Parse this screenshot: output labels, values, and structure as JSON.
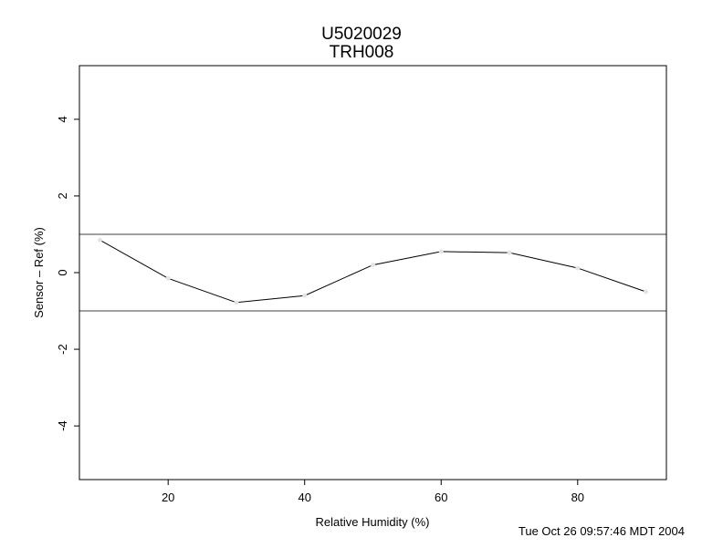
{
  "header": {
    "title": "U5020029",
    "subtitle": "TRH008"
  },
  "footer": {
    "timestamp": "Tue Oct 26 09:57:46 MDT 2004"
  },
  "chart_data": {
    "type": "line",
    "title": "U5020029",
    "subtitle": "TRH008",
    "xlabel": "Relative Humidity (%)",
    "ylabel": "Sensor – Ref (%)",
    "xlim": [
      7,
      93
    ],
    "ylim": [
      -5.4,
      5.4
    ],
    "xticks": [
      20,
      40,
      60,
      80
    ],
    "yticks": [
      -4,
      -2,
      0,
      2,
      4
    ],
    "grid": false,
    "reference_lines": [
      1,
      -1
    ],
    "series": [
      {
        "x": [
          10,
          20,
          30,
          40,
          50,
          60,
          70,
          80,
          90
        ],
        "values": [
          0.85,
          -0.15,
          -0.78,
          -0.6,
          0.2,
          0.55,
          0.52,
          0.12,
          -0.5
        ]
      }
    ]
  }
}
